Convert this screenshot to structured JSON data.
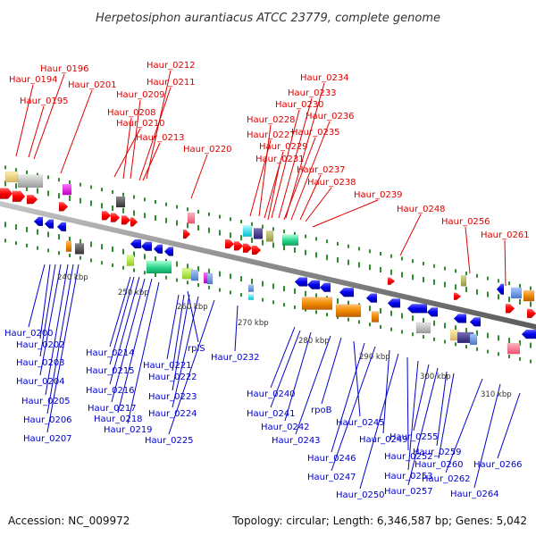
{
  "title": "Herpetosiphon aurantiacus ATCC 23779, complete genome",
  "footer": {
    "accession": "Accession: NC_009972",
    "topology": "Topology: circular; Length: 6,346,587 bp; Genes: 5,042"
  },
  "colors": {
    "forward_label": "#dd0000",
    "reverse_label": "#0000cc",
    "forward_gene": "#ff0000",
    "reverse_gene": "#0000ee",
    "backbone": "#8a8a8a",
    "tick": "#2e8b2e"
  },
  "scale_labels": [
    "240 kbp",
    "250 kbp",
    "260 kbp",
    "270 kbp",
    "280 kbp",
    "290 kbp",
    "300 kbp",
    "310 kbp"
  ],
  "forward_labels": [
    "Haur_0196",
    "Haur_0194",
    "Haur_0195",
    "Haur_0201",
    "Haur_0212",
    "Haur_0211",
    "Haur_0209",
    "Haur_0208",
    "Haur_0210",
    "Haur_0213",
    "Haur_0220",
    "Haur_0234",
    "Haur_0233",
    "Haur_0230",
    "Haur_0228",
    "Haur_0236",
    "Haur_0227",
    "Haur_0235",
    "Haur_0229",
    "Haur_0231",
    "Haur_0237",
    "Haur_0238",
    "Haur_0239",
    "Haur_0248",
    "Haur_0256",
    "Haur_0261"
  ],
  "reverse_labels": [
    "Haur_0200",
    "Haur_0202",
    "Haur_0203",
    "Haur_0204",
    "Haur_0205",
    "Haur_0206",
    "Haur_0207",
    "Haur_0214",
    "Haur_0215",
    "Haur_0216",
    "Haur_0217",
    "Haur_0218",
    "Haur_0219",
    "rplS",
    "Haur_0221",
    "Haur_0222",
    "Haur_0223",
    "Haur_0224",
    "Haur_0225",
    "Haur_0232",
    "Haur_0240",
    "Haur_0241",
    "Haur_0242",
    "Haur_0243",
    "rpoB",
    "Haur_0245",
    "Haur_0246",
    "Haur_0247",
    "Haur_0249",
    "Haur_0250",
    "Haur_0252",
    "Haur_0253",
    "Haur_0255",
    "Haur_0257",
    "Haur_0259",
    "Haur_0260",
    "Haur_0262",
    "Haur_0264",
    "Haur_0266"
  ]
}
